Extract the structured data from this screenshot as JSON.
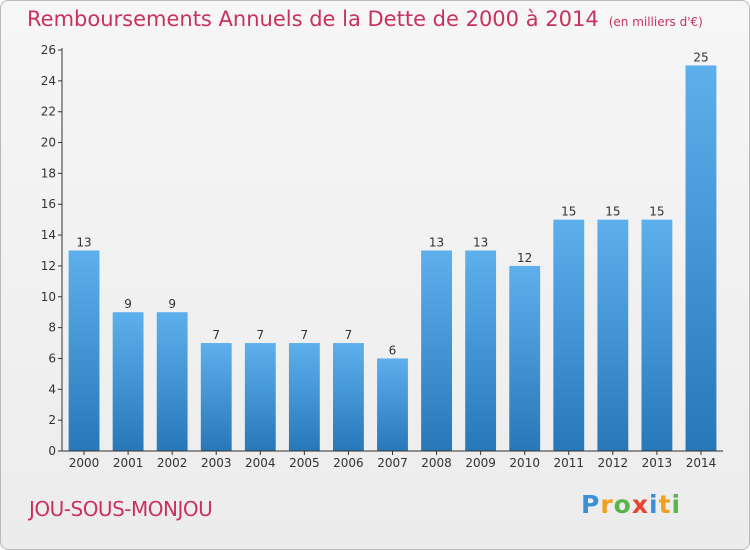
{
  "title": "Remboursements Annuels de la Dette de 2000 à 2014",
  "unit_note": "(en milliers d'€)",
  "location": "JOU-SOUS-MONJOU",
  "brand": {
    "name": "Proxiti",
    "letters": [
      {
        "ch": "P",
        "color": "#3a8fd6"
      },
      {
        "ch": "r",
        "color": "#f0a020"
      },
      {
        "ch": "o",
        "color": "#5ab548"
      },
      {
        "ch": "x",
        "color": "#e8452e"
      },
      {
        "ch": "i",
        "color": "#3a8fd6"
      },
      {
        "ch": "t",
        "color": "#f0a020"
      },
      {
        "ch": "i",
        "color": "#5ab548"
      }
    ]
  },
  "colors": {
    "accent": "#c8325e",
    "bar_light": "#5db0ec",
    "bar_dark": "#2778b9",
    "axis": "#333333"
  },
  "chart_data": {
    "type": "bar",
    "title": "Remboursements Annuels de la Dette de 2000 à 2014",
    "xlabel": "",
    "ylabel": "",
    "categories": [
      "2000",
      "2001",
      "2002",
      "2003",
      "2004",
      "2005",
      "2006",
      "2007",
      "2008",
      "2009",
      "2010",
      "2011",
      "2012",
      "2013",
      "2014"
    ],
    "values": [
      13,
      9,
      9,
      7,
      7,
      7,
      7,
      6,
      13,
      13,
      12,
      15,
      15,
      15,
      25
    ],
    "ylim": [
      0,
      26
    ],
    "yticks": [
      0,
      2,
      4,
      6,
      8,
      10,
      12,
      14,
      16,
      18,
      20,
      22,
      24,
      26
    ],
    "grid": false,
    "legend": "none"
  }
}
